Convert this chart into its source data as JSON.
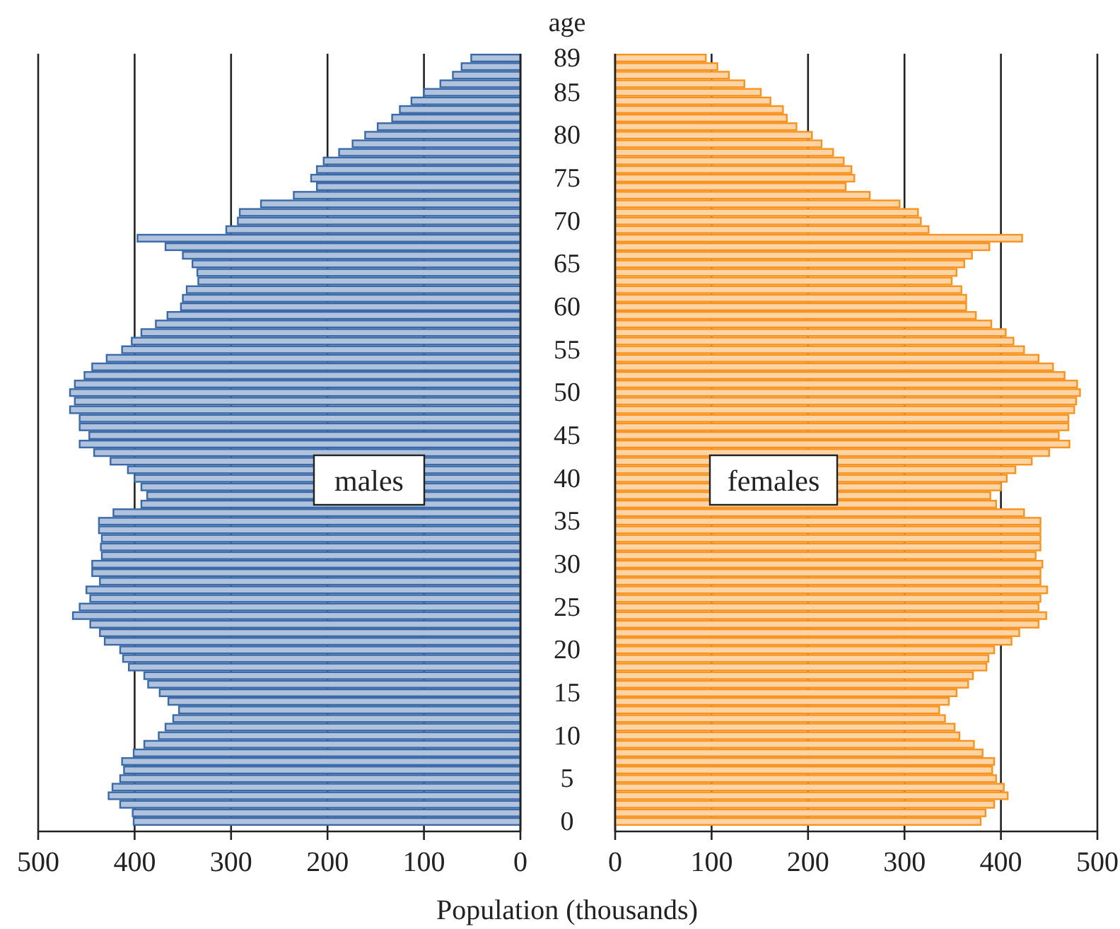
{
  "chart_data": [
    {
      "type": "bar",
      "orientation": "horizontal",
      "ylabel": "age",
      "xlabel": "Population (thousands)",
      "categories": [
        "89",
        null,
        null,
        null,
        "85",
        null,
        null,
        null,
        null,
        "80",
        null,
        null,
        null,
        null,
        "75",
        null,
        null,
        null,
        null,
        "70",
        null,
        null,
        null,
        null,
        "65",
        null,
        null,
        null,
        null,
        "60",
        null,
        null,
        null,
        null,
        "55",
        null,
        null,
        null,
        null,
        "50",
        null,
        null,
        null,
        null,
        "45",
        null,
        null,
        null,
        null,
        "40",
        null,
        null,
        null,
        null,
        "35",
        null,
        null,
        null,
        null,
        "30",
        null,
        null,
        null,
        null,
        "25",
        null,
        null,
        null,
        null,
        "20",
        null,
        null,
        null,
        null,
        "15",
        null,
        null,
        null,
        null,
        "10",
        null,
        null,
        null,
        null,
        "5",
        null,
        null,
        null,
        null,
        "0"
      ],
      "series": [
        {
          "name": "males",
          "color": "#3b6aa8",
          "values": [
            51,
            61,
            70,
            83,
            100,
            113,
            125,
            133,
            148,
            161,
            174,
            188,
            204,
            211,
            217,
            211,
            235,
            269,
            291,
            293,
            305,
            397,
            368,
            350,
            340,
            335,
            334,
            346,
            350,
            352,
            366,
            378,
            393,
            403,
            413,
            429,
            444,
            452,
            462,
            467,
            462,
            467,
            457,
            457,
            447,
            457,
            442,
            425,
            407,
            400,
            393,
            387,
            393,
            422,
            437,
            437,
            434,
            435,
            434,
            444,
            444,
            436,
            450,
            446,
            457,
            464,
            446,
            436,
            431,
            415,
            412,
            406,
            390,
            386,
            374,
            365,
            354,
            360,
            368,
            375,
            390,
            401,
            413,
            411,
            415,
            423,
            427,
            415,
            402,
            401
          ]
        }
      ],
      "xlim": [
        500,
        0
      ],
      "xticks": [
        500,
        400,
        300,
        200,
        100,
        0
      ],
      "grid": "x"
    },
    {
      "type": "bar",
      "orientation": "horizontal",
      "tick_labels": "x",
      "categories": [
        null,
        null,
        null,
        null,
        null,
        null,
        null,
        null,
        null,
        null,
        null,
        null,
        null,
        null,
        null,
        null,
        null,
        null,
        null,
        null,
        null,
        null,
        null,
        null,
        null,
        null,
        null,
        null,
        null,
        null,
        null,
        null,
        null,
        null,
        null,
        null,
        null,
        null,
        null,
        null,
        null,
        null,
        null,
        null,
        null,
        null,
        null,
        null,
        null,
        null,
        null,
        null,
        null,
        null,
        null,
        null,
        null,
        null,
        null,
        null,
        null,
        null,
        null,
        null,
        null,
        null,
        null,
        null,
        null,
        null,
        null,
        null,
        null,
        null,
        null,
        null,
        null,
        null,
        null,
        null,
        null,
        null,
        null,
        null,
        null,
        null,
        null,
        null,
        null,
        null
      ],
      "series": [
        {
          "name": "females",
          "color": "#f7931e",
          "values": [
            94,
            106,
            118,
            134,
            151,
            161,
            174,
            178,
            188,
            204,
            214,
            226,
            237,
            245,
            248,
            239,
            264,
            295,
            314,
            317,
            325,
            422,
            388,
            370,
            362,
            354,
            349,
            359,
            364,
            364,
            374,
            390,
            405,
            413,
            424,
            439,
            454,
            466,
            479,
            482,
            478,
            476,
            470,
            470,
            460,
            471,
            450,
            432,
            415,
            406,
            400,
            389,
            395,
            424,
            441,
            441,
            441,
            441,
            436,
            443,
            441,
            441,
            448,
            441,
            439,
            447,
            439,
            419,
            411,
            393,
            387,
            385,
            371,
            366,
            354,
            346,
            336,
            342,
            352,
            357,
            372,
            381,
            393,
            391,
            395,
            403,
            407,
            393,
            384,
            379
          ]
        }
      ],
      "xlim": [
        0,
        500
      ],
      "xticks": [
        0,
        100,
        200,
        300,
        400,
        500
      ],
      "grid": "x"
    }
  ]
}
